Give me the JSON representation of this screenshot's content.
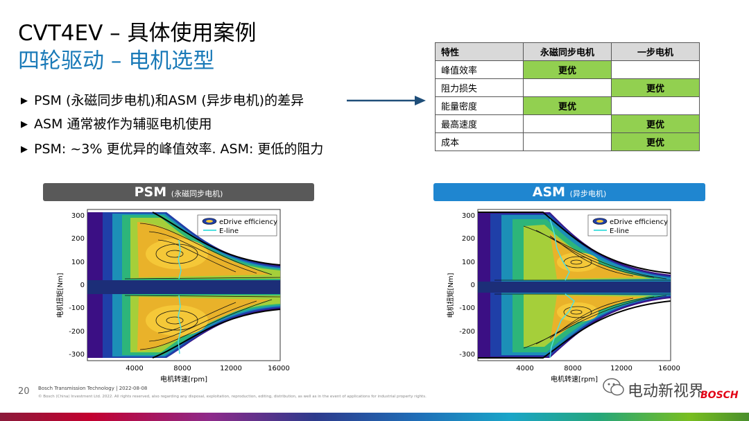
{
  "header": {
    "title": "CVT4EV – 具体使用案例",
    "subtitle": "四轮驱动 – 电机选型",
    "subtitle_color": "#1a7ab8"
  },
  "bullets": [
    "PSM (永磁同步电机)和ASM (异步电机)的差异",
    "ASM 通常被作为辅驱电机使用",
    "PSM: ~3% 更优异的峰值效率. ASM: 更低的阻力"
  ],
  "comparison_table": {
    "headers": [
      "特性",
      "永磁同步电机",
      "一步电机"
    ],
    "rows": [
      {
        "label": "峰值效率",
        "psm": "更优",
        "asm": ""
      },
      {
        "label": "阻力损失",
        "psm": "",
        "asm": "更优"
      },
      {
        "label": "能量密度",
        "psm": "更优",
        "asm": ""
      },
      {
        "label": "最高速度",
        "psm": "",
        "asm": "更优"
      },
      {
        "label": "成本",
        "psm": "",
        "asm": "更优"
      }
    ],
    "highlight_color": "#92d050"
  },
  "psm_panel": {
    "title": "PSM",
    "subtitle": "(永磁同步电机)",
    "color": "#595959"
  },
  "asm_panel": {
    "title": "ASM",
    "subtitle": "(异步电机)",
    "color": "#1f86d0"
  },
  "plots": {
    "ylabel": "电机扭矩[Nm]",
    "xlabel": "电机转速[rpm]",
    "x_ticks": [
      "4000",
      "8000",
      "12000",
      "16000"
    ],
    "y_ticks": [
      "300",
      "200",
      "100",
      "0",
      "-100",
      "-200",
      "-300"
    ],
    "legend": [
      "eDrive efficiency",
      "E-line"
    ]
  },
  "footer": {
    "page": "20",
    "company": "Bosch Transmission Technology | 2022-08-08",
    "legal": "© Bosch (China) Investment Ltd. 2022. All rights reserved, also regarding any disposal, exploitation, reproduction, editing, distribution, as well as in the event of applications for industrial property rights.",
    "watermark": "电动新视界",
    "logo": "BOSCH"
  }
}
